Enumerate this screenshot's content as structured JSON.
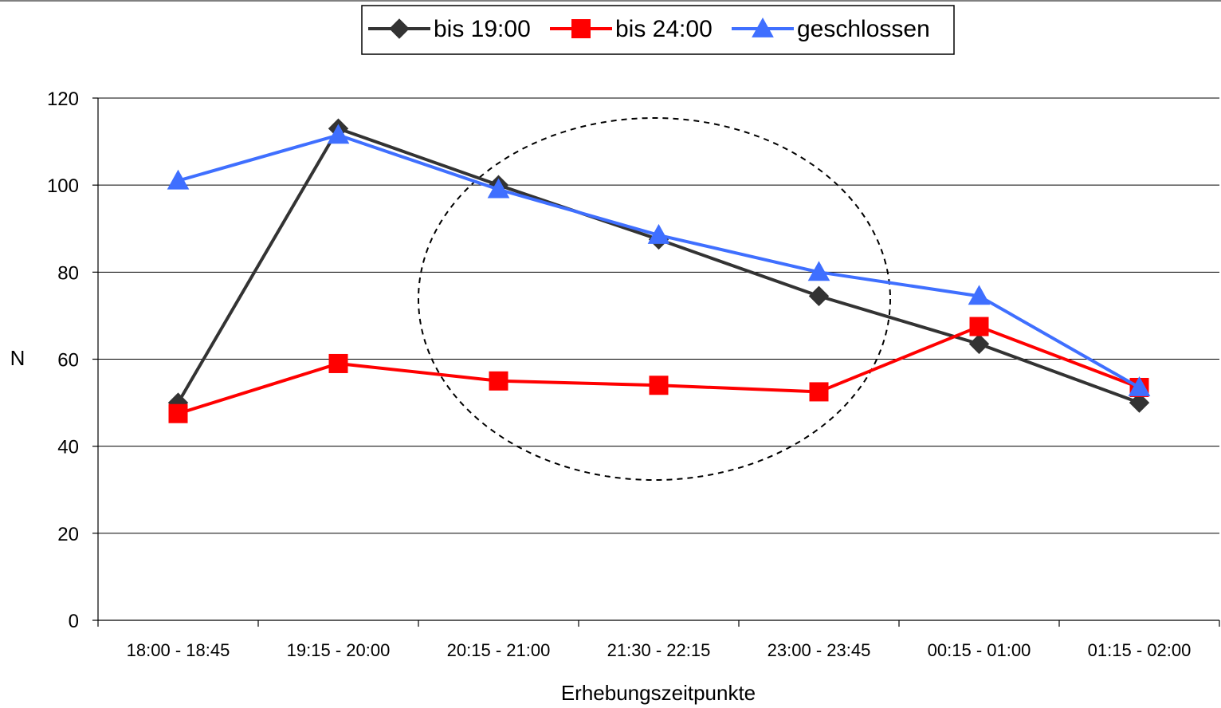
{
  "chart_data": {
    "type": "line",
    "categories": [
      "18:00 - 18:45",
      "19:15 - 20:00",
      "20:15 - 21:00",
      "21:30 - 22:15",
      "23:00 - 23:45",
      "00:15 - 01:00",
      "01:15 - 02:00"
    ],
    "series": [
      {
        "name": "bis 19:00",
        "values": [
          50,
          113,
          100,
          87.5,
          74.5,
          63.5,
          50
        ],
        "color": "#333333",
        "marker": "diamond"
      },
      {
        "name": "bis 24:00",
        "values": [
          47.5,
          59,
          55,
          54,
          52.5,
          67.5,
          53.5
        ],
        "color": "#ff0000",
        "marker": "square"
      },
      {
        "name": "geschlossen",
        "values": [
          101,
          111.5,
          99,
          88.5,
          80,
          74.5,
          53.5
        ],
        "color": "#3f6fff",
        "marker": "triangle"
      }
    ],
    "ylabel": "N",
    "xlabel": "Erhebungszeitpunkte",
    "ylim": [
      0,
      120
    ],
    "yticks": [
      0,
      20,
      40,
      60,
      80,
      100,
      120
    ],
    "grid": true,
    "legend": "top-center",
    "annotation": "dashed ellipse highlighting 20:15 - 21:00 to 23:00 - 23:45"
  }
}
